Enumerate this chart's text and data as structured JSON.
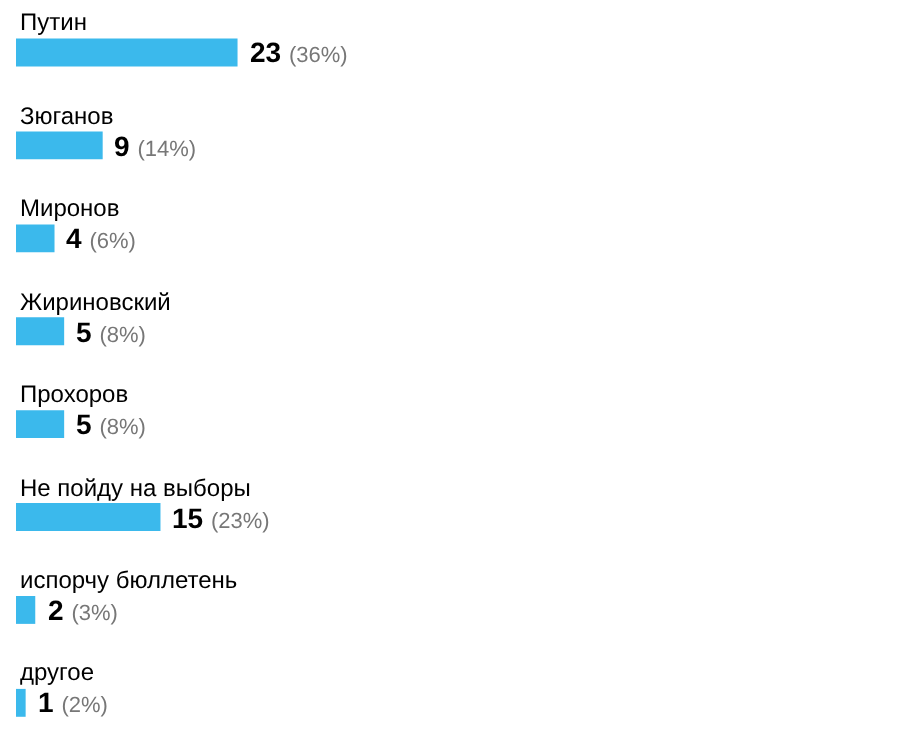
{
  "chart_data": {
    "type": "bar",
    "orientation": "horizontal",
    "categories": [
      "Путин",
      "Зюганов",
      "Миронов",
      "Жириновский",
      "Прохоров",
      "Не пойду на выборы",
      "испорчу бюллетень",
      "другое"
    ],
    "values": [
      23,
      9,
      4,
      5,
      5,
      15,
      2,
      1
    ],
    "value_labels": [
      "23 (36%)",
      "9 (14%)",
      "4 (6%)",
      "5 (8%)",
      "5 (8%)",
      "15 (23%)",
      "2 (3%)",
      "1 (2%)"
    ],
    "color": "#3bb9ec",
    "grid": false,
    "legend": false
  }
}
